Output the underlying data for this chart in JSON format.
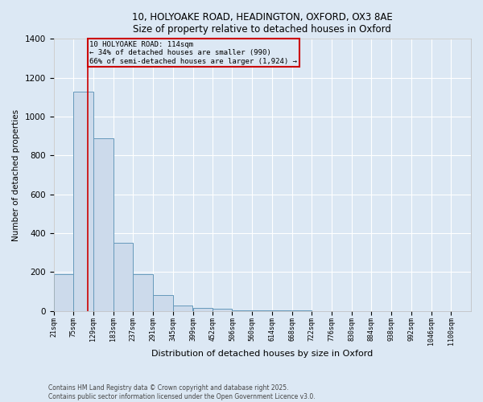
{
  "title_line1": "10, HOLYOAKE ROAD, HEADINGTON, OXFORD, OX3 8AE",
  "title_line2": "Size of property relative to detached houses in Oxford",
  "xlabel": "Distribution of detached houses by size in Oxford",
  "ylabel": "Number of detached properties",
  "bar_left_edges": [
    21,
    75,
    129,
    183,
    237,
    291,
    345,
    399,
    452,
    506,
    560,
    614,
    668,
    722,
    776,
    830,
    884,
    938,
    992,
    1046
  ],
  "bar_widths": [
    54,
    54,
    54,
    54,
    54,
    54,
    54,
    53,
    54,
    54,
    54,
    54,
    54,
    54,
    54,
    54,
    54,
    54,
    54,
    54
  ],
  "bar_heights": [
    190,
    1130,
    890,
    350,
    190,
    80,
    30,
    15,
    10,
    5,
    3,
    2,
    2,
    1,
    1,
    1,
    0,
    0,
    0,
    0
  ],
  "bar_color": "#ccdaeb",
  "bar_edge_color": "#6699bb",
  "property_line_x": 114,
  "property_line_color": "#cc0000",
  "annotation_text": "10 HOLYOAKE ROAD: 114sqm\n← 34% of detached houses are smaller (990)\n66% of semi-detached houses are larger (1,924) →",
  "annotation_box_facecolor": "#dce8f4",
  "annotation_box_edgecolor": "#cc0000",
  "ylim": [
    0,
    1400
  ],
  "yticks": [
    0,
    200,
    400,
    600,
    800,
    1000,
    1200,
    1400
  ],
  "tick_labels": [
    "21sqm",
    "75sqm",
    "129sqm",
    "183sqm",
    "237sqm",
    "291sqm",
    "345sqm",
    "399sqm",
    "452sqm",
    "506sqm",
    "560sqm",
    "614sqm",
    "668sqm",
    "722sqm",
    "776sqm",
    "830sqm",
    "884sqm",
    "938sqm",
    "992sqm",
    "1046sqm",
    "1100sqm"
  ],
  "tick_positions": [
    21,
    75,
    129,
    183,
    237,
    291,
    345,
    399,
    452,
    506,
    560,
    614,
    668,
    722,
    776,
    830,
    884,
    938,
    992,
    1046,
    1100
  ],
  "background_color": "#dce8f4",
  "plot_bg_color": "#dce8f4",
  "grid_color": "#ffffff",
  "footer_text": "Contains HM Land Registry data © Crown copyright and database right 2025.\nContains public sector information licensed under the Open Government Licence v3.0.",
  "fig_width": 6.0,
  "fig_height": 5.0,
  "dpi": 100
}
